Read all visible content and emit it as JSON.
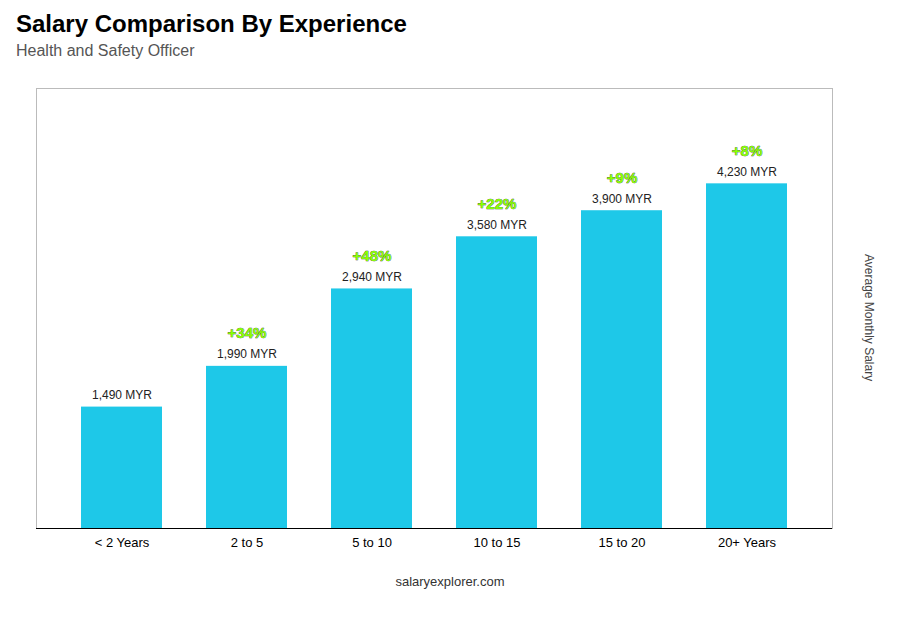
{
  "chart_data": {
    "type": "bar",
    "title": "Salary Comparison By Experience",
    "subtitle": "Health and Safety Officer",
    "categories": [
      "< 2 Years",
      "2 to 5",
      "5 to 10",
      "10 to 15",
      "15 to 20",
      "20+ Years"
    ],
    "values": [
      1490,
      1990,
      2940,
      3580,
      3900,
      4230
    ],
    "value_labels": [
      "1,490 MYR",
      "1,990 MYR",
      "2,940 MYR",
      "3,580 MYR",
      "3,900 MYR",
      "4,230 MYR"
    ],
    "data_labels": true,
    "color": "#1ec8e8",
    "ylabel": "Average Monthly Salary",
    "ylim": [
      0,
      5400
    ],
    "tick_labels": "x",
    "grid": false,
    "annotations": [
      {
        "text": "+34%",
        "category": "2 to 5",
        "color": "#88ff00"
      },
      {
        "text": "+48%",
        "category": "5 to 10",
        "color": "#88ff00"
      },
      {
        "text": "+22%",
        "category": "10 to 15",
        "color": "#88ff00"
      },
      {
        "text": "+9%",
        "category": "15 to 20",
        "color": "#88ff00"
      },
      {
        "text": "+8%",
        "category": "20+ Years",
        "color": "#88ff00"
      }
    ],
    "caption": "salaryexplorer.com"
  }
}
